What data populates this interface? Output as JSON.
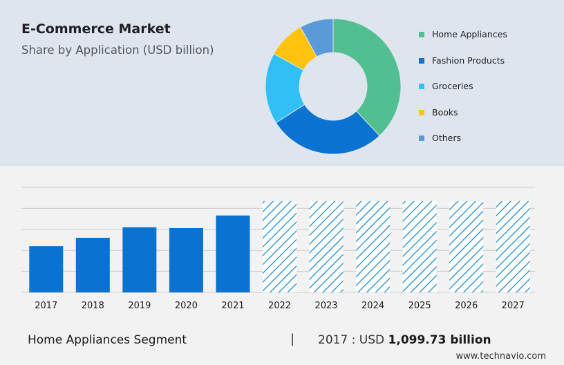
{
  "header": {
    "title": "E-Commerce Market",
    "subtitle": "Share by Application (USD billion)"
  },
  "chart_data": [
    {
      "type": "pie",
      "subtype": "donut",
      "labels": [
        "Home Appliances",
        "Fashion Products",
        "Groceries",
        "Books",
        "Others"
      ],
      "values": [
        38,
        28,
        17,
        9,
        8
      ],
      "colors": [
        "#52bf90",
        "#0a72d1",
        "#30c0f5",
        "#ffc20e",
        "#5a9ad8"
      ],
      "legend_position": "right"
    },
    {
      "type": "bar",
      "title": "",
      "categories": [
        "2017",
        "2018",
        "2019",
        "2020",
        "2021",
        "2022",
        "2023",
        "2024",
        "2025",
        "2026",
        "2027"
      ],
      "values": [
        1099.73,
        1300,
        1550,
        1530,
        1830,
        null,
        null,
        null,
        null,
        null,
        null
      ],
      "forecast_categories": [
        "2022",
        "2023",
        "2024",
        "2025",
        "2026",
        "2027"
      ],
      "forecast_pattern": "hatched",
      "ylim": [
        0,
        2500
      ],
      "y_tick_values": [
        0,
        500,
        1000,
        1500,
        2000,
        2500
      ],
      "y_tick_labels_shown": false,
      "grid": true,
      "bar_color": "#0a72d1",
      "forecast_color": "#1f8ad4"
    }
  ],
  "footer": {
    "segment_label": "Home Appliances Segment",
    "separator": "|",
    "value_prefix": "2017 : USD",
    "value_bold": "1,099.73 billion"
  },
  "brand": "www.technavio.com"
}
